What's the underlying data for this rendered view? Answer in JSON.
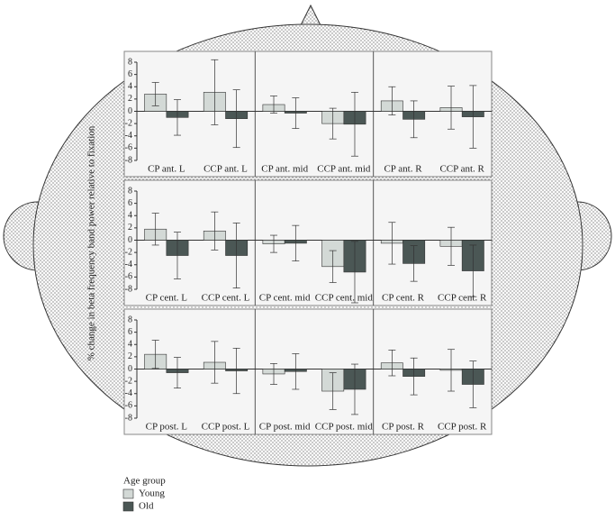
{
  "y_label": "% change in beta frequency band power relative to fixation",
  "legend": {
    "title": "Age group",
    "entries": [
      {
        "name": "Young",
        "color": "#d3d9d6"
      },
      {
        "name": "Old",
        "color": "#4b5755"
      }
    ]
  },
  "chart_data": [
    {
      "type": "bar",
      "categories": [
        "CP ant. L",
        "CCP ant. L",
        "CP ant. mid",
        "CCP ant. mid",
        "CP ant. R",
        "CCP ant. R"
      ],
      "series": [
        {
          "values": [
            2.8,
            3.1,
            1.1,
            -2.0,
            1.7,
            0.6
          ],
          "errors": [
            1.9,
            5.3,
            1.4,
            2.5,
            2.3,
            3.5
          ]
        },
        {
          "values": [
            -1.0,
            -1.2,
            -0.3,
            -2.1,
            -1.3,
            -0.9
          ],
          "errors": [
            2.9,
            4.7,
            2.5,
            5.2,
            3.0,
            5.1
          ]
        }
      ],
      "ylim": [
        -8,
        8
      ],
      "yticks": [
        8,
        6,
        4,
        2,
        0,
        -2,
        -4,
        -6,
        -8
      ]
    },
    {
      "type": "bar",
      "categories": [
        "CP cent. L",
        "CCP cent. L",
        "CP cent. mid",
        "CCP cent. mid",
        "CP cent. R",
        "CCP cent. R"
      ],
      "series": [
        {
          "values": [
            1.8,
            1.5,
            -0.6,
            -4.3,
            -0.5,
            -1.0
          ],
          "errors": [
            2.6,
            3.1,
            1.4,
            2.6,
            3.4,
            3.1
          ]
        },
        {
          "values": [
            -2.5,
            -2.5,
            -0.5,
            -5.2,
            -3.8,
            -5.0
          ],
          "errors": [
            3.8,
            5.3,
            2.9,
            5.0,
            2.9,
            4.2
          ]
        }
      ],
      "ylim": [
        -8,
        8
      ],
      "yticks": [
        8,
        6,
        4,
        2,
        0,
        -2,
        -4,
        -6,
        -8
      ]
    },
    {
      "type": "bar",
      "categories": [
        "CP post. L",
        "CCP post. L",
        "CP post. mid",
        "CCP post. mid",
        "CP post. R",
        "CCP post. R"
      ],
      "series": [
        {
          "values": [
            2.4,
            1.1,
            -0.8,
            -3.6,
            1.0,
            -0.2
          ],
          "errors": [
            2.3,
            3.4,
            1.7,
            3.0,
            2.1,
            3.4
          ]
        },
        {
          "values": [
            -0.6,
            -0.3,
            -0.4,
            -3.3,
            -1.2,
            -2.5
          ],
          "errors": [
            2.5,
            3.7,
            2.9,
            4.1,
            3.0,
            3.8
          ]
        }
      ],
      "ylim": [
        -8,
        8
      ],
      "yticks": [
        8,
        6,
        4,
        2,
        0,
        -2,
        -4,
        -6,
        -8
      ]
    }
  ]
}
